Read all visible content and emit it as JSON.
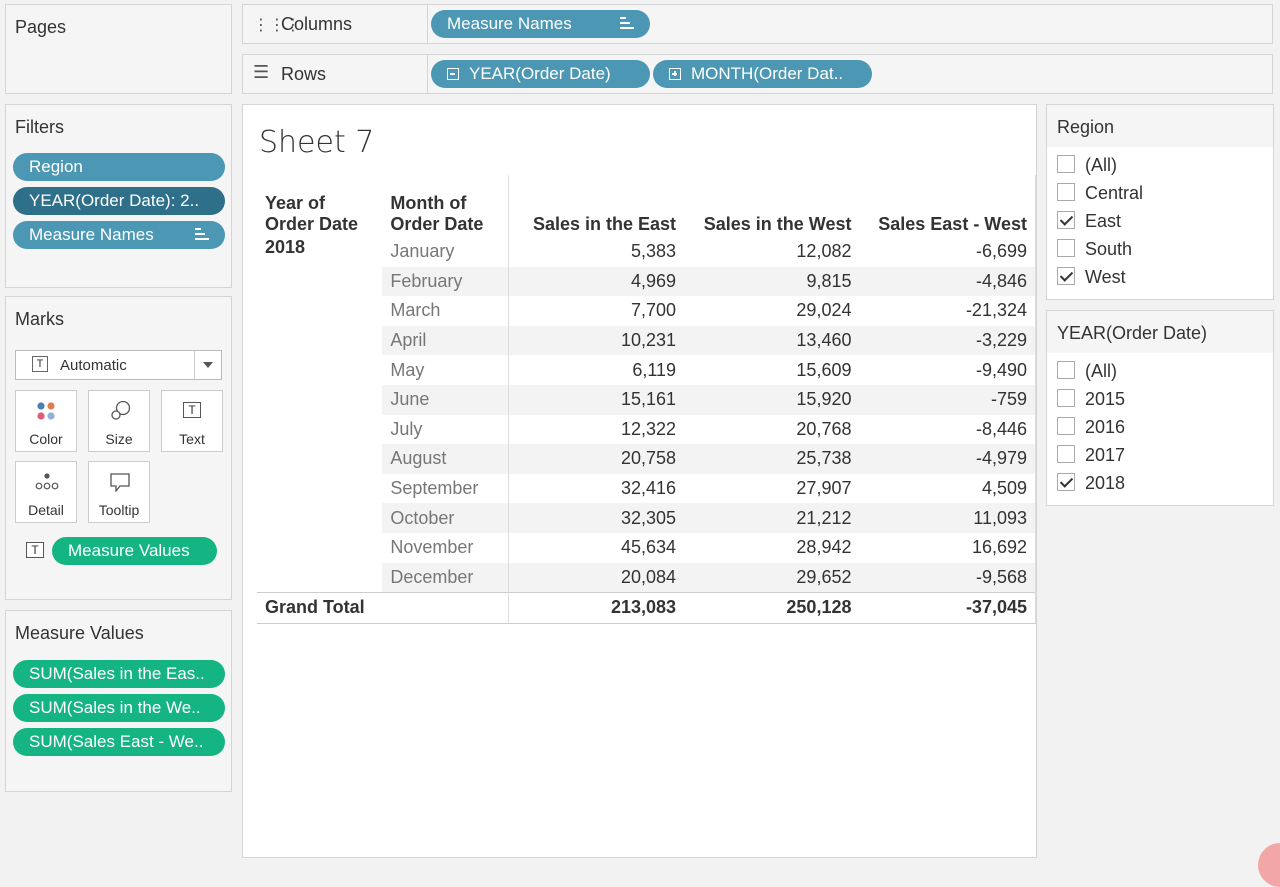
{
  "pages": {
    "title": "Pages"
  },
  "filters": {
    "title": "Filters",
    "pills": [
      "Region",
      "YEAR(Order Date): 2..",
      "Measure Names"
    ]
  },
  "marks": {
    "title": "Marks",
    "type": "Automatic",
    "buttons": {
      "color": "Color",
      "size": "Size",
      "text": "Text",
      "detail": "Detail",
      "tooltip": "Tooltip"
    },
    "text_pill": "Measure Values"
  },
  "measure_values": {
    "title": "Measure Values",
    "pills": [
      "SUM(Sales in the Eas..",
      "SUM(Sales in the We..",
      "SUM(Sales East - We.."
    ]
  },
  "shelves": {
    "columns": {
      "label": "Columns",
      "pill": "Measure Names"
    },
    "rows": {
      "label": "Rows",
      "pills": [
        "YEAR(Order Date)",
        "MONTH(Order Dat.."
      ]
    }
  },
  "sheet": {
    "title": "Sheet 7",
    "headers": {
      "year": [
        "Year of",
        "Order Date"
      ],
      "month": [
        "Month of",
        "Order Date"
      ],
      "east": "Sales in the East",
      "west": "Sales in the West",
      "diff": "Sales East - West"
    },
    "year": "2018",
    "rows": [
      {
        "month": "January",
        "east": "5,383",
        "west": "12,082",
        "diff": "-6,699"
      },
      {
        "month": "February",
        "east": "4,969",
        "west": "9,815",
        "diff": "-4,846"
      },
      {
        "month": "March",
        "east": "7,700",
        "west": "29,024",
        "diff": "-21,324"
      },
      {
        "month": "April",
        "east": "10,231",
        "west": "13,460",
        "diff": "-3,229"
      },
      {
        "month": "May",
        "east": "6,119",
        "west": "15,609",
        "diff": "-9,490"
      },
      {
        "month": "June",
        "east": "15,161",
        "west": "15,920",
        "diff": "-759"
      },
      {
        "month": "July",
        "east": "12,322",
        "west": "20,768",
        "diff": "-8,446"
      },
      {
        "month": "August",
        "east": "20,758",
        "west": "25,738",
        "diff": "-4,979"
      },
      {
        "month": "September",
        "east": "32,416",
        "west": "27,907",
        "diff": "4,509"
      },
      {
        "month": "October",
        "east": "32,305",
        "west": "21,212",
        "diff": "11,093"
      },
      {
        "month": "November",
        "east": "45,634",
        "west": "28,942",
        "diff": "16,692"
      },
      {
        "month": "December",
        "east": "20,084",
        "west": "29,652",
        "diff": "-9,568"
      }
    ],
    "grand_total": {
      "label": "Grand Total",
      "east": "213,083",
      "west": "250,128",
      "diff": "-37,045"
    }
  },
  "region_filter": {
    "title": "Region",
    "items": [
      {
        "label": "(All)",
        "checked": false
      },
      {
        "label": "Central",
        "checked": false
      },
      {
        "label": "East",
        "checked": true
      },
      {
        "label": "South",
        "checked": false
      },
      {
        "label": "West",
        "checked": true
      }
    ]
  },
  "year_filter": {
    "title": "YEAR(Order Date)",
    "items": [
      {
        "label": "(All)",
        "checked": false
      },
      {
        "label": "2015",
        "checked": false
      },
      {
        "label": "2016",
        "checked": false
      },
      {
        "label": "2017",
        "checked": false
      },
      {
        "label": "2018",
        "checked": true
      }
    ]
  },
  "colors": {
    "pill_blue": "#4c97b3",
    "pill_dark": "#2e6f8a",
    "pill_green": "#14b582"
  }
}
